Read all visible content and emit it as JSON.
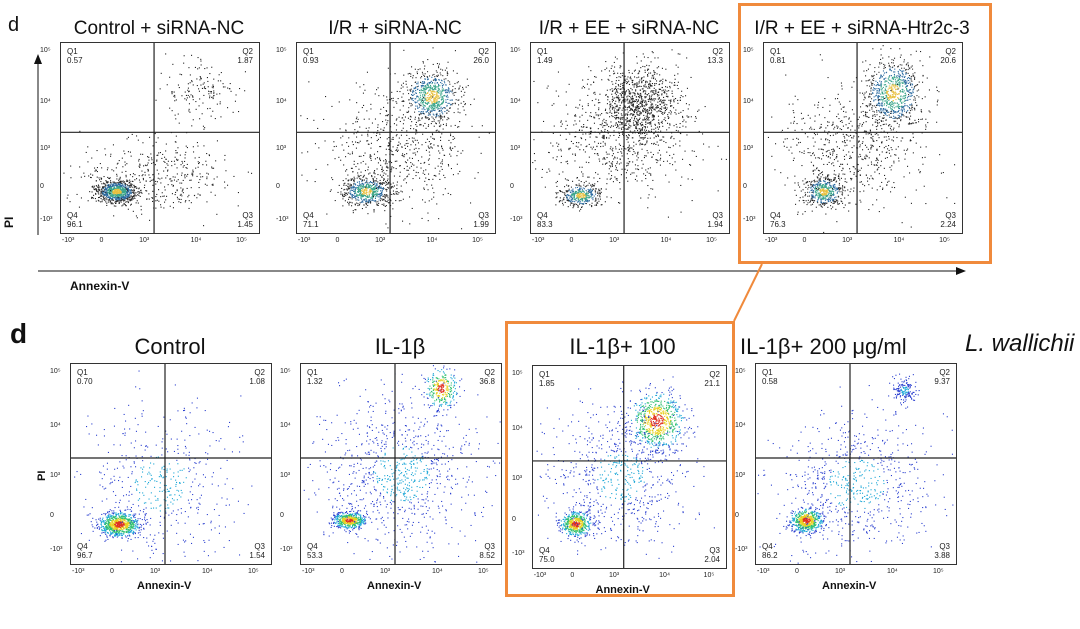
{
  "figure": {
    "top_letter": "d",
    "bottom_letter": "d",
    "top_y_axis_label": "PI",
    "top_x_axis_label": "Annexin-V",
    "bottom_y_axis_label": "PI",
    "bottom_x_axis_label": "Annexin-V",
    "species_label": "L. wallichii",
    "highlight_color": "#f08a3c",
    "x_ticks": [
      "-10³",
      "0",
      "10³",
      "10⁴",
      "10⁵"
    ],
    "y_ticks": [
      "10⁵",
      "10⁴",
      "10³",
      "0",
      "-10³"
    ]
  },
  "chart_data": [
    {
      "type": "scatter",
      "title": "Control + siRNA-NC",
      "xlabel": "Annexin-V",
      "ylabel": "PI",
      "quadrants": {
        "Q1": {
          "label": "Q1",
          "value": "0.57"
        },
        "Q2": {
          "label": "Q2",
          "value": "1.87"
        },
        "Q3": {
          "label": "Q3",
          "value": "1.45"
        },
        "Q4": {
          "label": "Q4",
          "value": "96.1"
        }
      }
    },
    {
      "type": "scatter",
      "title": "I/R + siRNA-NC",
      "xlabel": "Annexin-V",
      "ylabel": "PI",
      "quadrants": {
        "Q1": {
          "label": "Q1",
          "value": "0.93"
        },
        "Q2": {
          "label": "Q2",
          "value": "26.0"
        },
        "Q3": {
          "label": "Q3",
          "value": "1.99"
        },
        "Q4": {
          "label": "Q4",
          "value": "71.1"
        }
      }
    },
    {
      "type": "scatter",
      "title": "I/R + EE + siRNA-NC",
      "xlabel": "Annexin-V",
      "ylabel": "PI",
      "quadrants": {
        "Q1": {
          "label": "Q1",
          "value": "1.49"
        },
        "Q2": {
          "label": "Q2",
          "value": "13.3"
        },
        "Q3": {
          "label": "Q3",
          "value": "1.94"
        },
        "Q4": {
          "label": "Q4",
          "value": "83.3"
        }
      }
    },
    {
      "type": "scatter",
      "title": "I/R + EE + siRNA-Htr2c-3",
      "xlabel": "Annexin-V",
      "ylabel": "PI",
      "quadrants": {
        "Q1": {
          "label": "Q1",
          "value": "0.81"
        },
        "Q2": {
          "label": "Q2",
          "value": "20.6"
        },
        "Q3": {
          "label": "Q3",
          "value": "2.24"
        },
        "Q4": {
          "label": "Q4",
          "value": "76.3"
        }
      }
    },
    {
      "type": "scatter",
      "title": "Control",
      "xlabel": "Annexin-V",
      "ylabel": "PI",
      "quadrants": {
        "Q1": {
          "label": "Q1",
          "value": "0.70"
        },
        "Q2": {
          "label": "Q2",
          "value": "1.08"
        },
        "Q3": {
          "label": "Q3",
          "value": "1.54"
        },
        "Q4": {
          "label": "Q4",
          "value": "96.7"
        }
      }
    },
    {
      "type": "scatter",
      "title": "IL-1β",
      "xlabel": "Annexin-V",
      "ylabel": "PI",
      "quadrants": {
        "Q1": {
          "label": "Q1",
          "value": "1.32"
        },
        "Q2": {
          "label": "Q2",
          "value": "36.8"
        },
        "Q3": {
          "label": "Q3",
          "value": "8.52"
        },
        "Q4": {
          "label": "Q4",
          "value": "53.3"
        }
      }
    },
    {
      "type": "scatter",
      "title": "IL-1β+ 100",
      "xlabel": "Annexin-V",
      "ylabel": "PI",
      "quadrants": {
        "Q1": {
          "label": "Q1",
          "value": "1.85"
        },
        "Q2": {
          "label": "Q2",
          "value": "21.1"
        },
        "Q3": {
          "label": "Q3",
          "value": "2.04"
        },
        "Q4": {
          "label": "Q4",
          "value": "75.0"
        }
      }
    },
    {
      "type": "scatter",
      "title": "IL-1β+ 200  μg/ml",
      "xlabel": "Annexin-V",
      "ylabel": "PI",
      "quadrants": {
        "Q1": {
          "label": "Q1",
          "value": "0.58"
        },
        "Q2": {
          "label": "Q2",
          "value": "9.37"
        },
        "Q3": {
          "label": "Q3",
          "value": "3.88"
        },
        "Q4": {
          "label": "Q4",
          "value": "86.2"
        }
      }
    }
  ]
}
